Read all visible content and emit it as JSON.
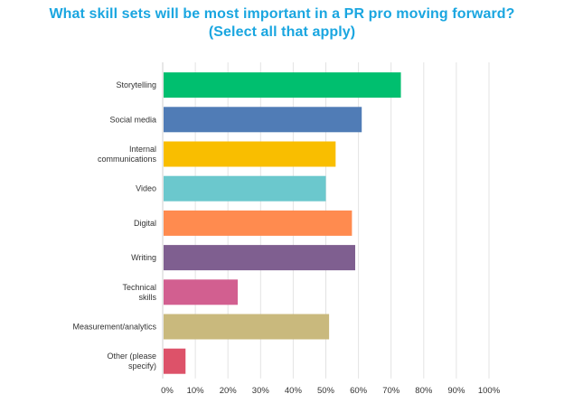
{
  "title_line1": "What skill sets will be most important in a PR pro moving forward?",
  "title_line2": "(Select all that apply)",
  "chart_data": {
    "type": "bar",
    "orientation": "horizontal",
    "title": "What skill sets will be most important in a PR pro moving forward? (Select all that apply)",
    "categories": [
      [
        "Storytelling"
      ],
      [
        "Social media"
      ],
      [
        "Internal",
        "communications"
      ],
      [
        "Video"
      ],
      [
        "Digital"
      ],
      [
        "Writing"
      ],
      [
        "Technical",
        "skills"
      ],
      [
        "Measurement/analytics"
      ],
      [
        "Other (please",
        "specify)"
      ]
    ],
    "values": [
      73,
      61,
      53,
      50,
      58,
      59,
      23,
      51,
      7
    ],
    "colors": [
      "#00bf6f",
      "#507cb6",
      "#f9be00",
      "#6bc8cd",
      "#ff8b4f",
      "#7f5f90",
      "#d25f90",
      "#c9b97d",
      "#dd5269"
    ],
    "xlim": [
      0,
      100
    ],
    "ticks": [
      "0%",
      "10%",
      "20%",
      "30%",
      "40%",
      "50%",
      "60%",
      "70%",
      "80%",
      "90%",
      "100%"
    ],
    "grid": true
  }
}
